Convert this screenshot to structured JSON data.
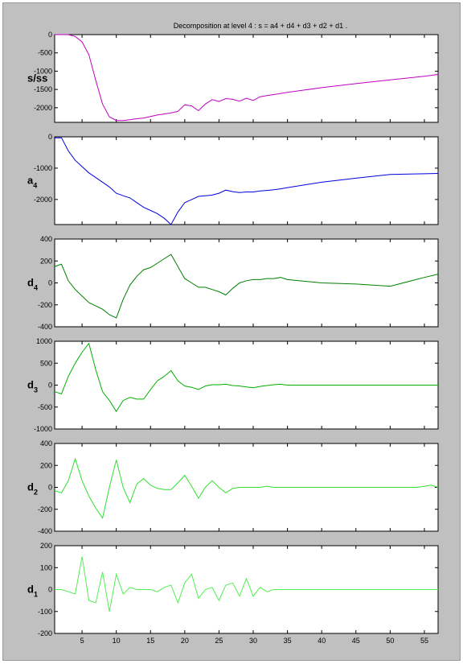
{
  "title": "Decomposition at level 4 : s = a4 + d4 + d3 + d2 + d1 .",
  "chart_data": [
    {
      "type": "line",
      "ylabel": "s/ss",
      "ylabel_sub": "",
      "color": "#c000c0",
      "xlim": [
        1,
        57
      ],
      "ylim": [
        -2400,
        0
      ],
      "yticks": [
        0,
        -500,
        -1000,
        -1500,
        -2000
      ],
      "xticks": [],
      "x": [
        1,
        2,
        3,
        4,
        5,
        6,
        7,
        8,
        9,
        10,
        11,
        12,
        13,
        14,
        15,
        16,
        17,
        18,
        19,
        20,
        21,
        22,
        23,
        24,
        25,
        26,
        27,
        28,
        29,
        30,
        31,
        32,
        33,
        34,
        35,
        40,
        45,
        50,
        55,
        57
      ],
      "values": [
        0,
        0,
        0,
        -50,
        -200,
        -550,
        -1250,
        -1900,
        -2250,
        -2350,
        -2350,
        -2330,
        -2300,
        -2280,
        -2240,
        -2200,
        -2170,
        -2140,
        -2100,
        -1920,
        -1950,
        -2080,
        -1900,
        -1780,
        -1830,
        -1750,
        -1770,
        -1820,
        -1740,
        -1800,
        -1700,
        -1670,
        -1640,
        -1610,
        -1580,
        -1450,
        -1340,
        -1240,
        -1140,
        -1090
      ]
    },
    {
      "type": "line",
      "ylabel": "a",
      "ylabel_sub": "4",
      "color": "#0000e0",
      "xlim": [
        1,
        57
      ],
      "ylim": [
        -2800,
        0
      ],
      "yticks": [
        0,
        -1000,
        -2000
      ],
      "xticks": [],
      "x": [
        1,
        2,
        3,
        4,
        5,
        6,
        7,
        8,
        9,
        10,
        11,
        12,
        13,
        14,
        15,
        16,
        17,
        18,
        19,
        20,
        21,
        22,
        23,
        24,
        25,
        26,
        27,
        28,
        29,
        30,
        31,
        32,
        33,
        34,
        35,
        40,
        45,
        50,
        55,
        57
      ],
      "values": [
        -30,
        -30,
        -450,
        -750,
        -950,
        -1150,
        -1300,
        -1450,
        -1600,
        -1800,
        -1880,
        -1950,
        -2100,
        -2250,
        -2350,
        -2450,
        -2600,
        -2800,
        -2400,
        -2100,
        -2000,
        -1900,
        -1880,
        -1860,
        -1800,
        -1700,
        -1750,
        -1780,
        -1760,
        -1760,
        -1730,
        -1710,
        -1690,
        -1660,
        -1620,
        -1450,
        -1320,
        -1200,
        -1180,
        -1170
      ]
    },
    {
      "type": "line",
      "ylabel": "d",
      "ylabel_sub": "4",
      "color": "#008000",
      "xlim": [
        1,
        57
      ],
      "ylim": [
        -400,
        400
      ],
      "yticks": [
        400,
        200,
        0,
        -200,
        -400
      ],
      "xticks": [],
      "x": [
        1,
        2,
        3,
        4,
        5,
        6,
        7,
        8,
        9,
        10,
        11,
        12,
        13,
        14,
        15,
        16,
        17,
        18,
        19,
        20,
        21,
        22,
        23,
        24,
        25,
        26,
        27,
        28,
        29,
        30,
        31,
        32,
        33,
        34,
        35,
        40,
        45,
        50,
        55,
        57
      ],
      "values": [
        150,
        170,
        20,
        -60,
        -120,
        -180,
        -210,
        -240,
        -290,
        -320,
        -150,
        -20,
        60,
        120,
        140,
        180,
        220,
        260,
        150,
        40,
        0,
        -40,
        -40,
        -60,
        -80,
        -110,
        -50,
        0,
        20,
        30,
        30,
        40,
        40,
        50,
        30,
        0,
        -10,
        -30,
        50,
        80
      ]
    },
    {
      "type": "line",
      "ylabel": "d",
      "ylabel_sub": "3",
      "color": "#00b000",
      "xlim": [
        1,
        57
      ],
      "ylim": [
        -1000,
        1000
      ],
      "yticks": [
        1000,
        500,
        0,
        -500,
        -1000
      ],
      "xticks": [],
      "x": [
        1,
        2,
        3,
        4,
        5,
        6,
        7,
        8,
        9,
        10,
        11,
        12,
        13,
        14,
        15,
        16,
        17,
        18,
        19,
        20,
        21,
        22,
        23,
        24,
        25,
        26,
        27,
        28,
        29,
        30,
        31,
        32,
        33,
        34,
        35,
        40,
        45,
        50,
        55,
        57
      ],
      "values": [
        -150,
        -200,
        200,
        500,
        750,
        950,
        350,
        -150,
        -350,
        -600,
        -350,
        -280,
        -320,
        -320,
        -100,
        100,
        200,
        330,
        100,
        -20,
        -50,
        -100,
        -20,
        10,
        10,
        20,
        -10,
        -20,
        -40,
        -60,
        -30,
        -10,
        10,
        20,
        0,
        0,
        0,
        0,
        0,
        0
      ]
    },
    {
      "type": "line",
      "ylabel": "d",
      "ylabel_sub": "2",
      "color": "#30e030",
      "xlim": [
        1,
        57
      ],
      "ylim": [
        -400,
        400
      ],
      "yticks": [
        400,
        200,
        0,
        -200,
        -400
      ],
      "xticks": [],
      "x": [
        1,
        2,
        3,
        4,
        5,
        6,
        7,
        8,
        9,
        10,
        11,
        12,
        13,
        14,
        15,
        16,
        17,
        18,
        19,
        20,
        21,
        22,
        23,
        24,
        25,
        26,
        27,
        28,
        29,
        30,
        31,
        32,
        33,
        34,
        35,
        40,
        45,
        50,
        54,
        56,
        57
      ],
      "values": [
        -30,
        -50,
        60,
        260,
        60,
        -80,
        -190,
        -280,
        0,
        250,
        0,
        -140,
        30,
        80,
        20,
        -10,
        -20,
        -20,
        40,
        110,
        10,
        -100,
        0,
        60,
        0,
        -50,
        -10,
        0,
        0,
        0,
        0,
        10,
        0,
        0,
        0,
        0,
        0,
        0,
        0,
        20,
        0
      ]
    },
    {
      "type": "line",
      "ylabel": "d",
      "ylabel_sub": "1",
      "color": "#50f050",
      "xlim": [
        1,
        57
      ],
      "ylim": [
        -200,
        200
      ],
      "yticks": [
        200,
        100,
        0,
        -100,
        -200
      ],
      "xticks": [
        5,
        10,
        15,
        20,
        25,
        30,
        35,
        40,
        45,
        50,
        55
      ],
      "x": [
        1,
        2,
        3,
        4,
        5,
        6,
        7,
        8,
        9,
        10,
        11,
        12,
        13,
        14,
        15,
        16,
        17,
        18,
        19,
        20,
        21,
        22,
        23,
        24,
        25,
        26,
        27,
        28,
        29,
        30,
        31,
        32,
        33,
        34,
        35,
        40,
        45,
        50,
        55,
        57
      ],
      "values": [
        0,
        0,
        -10,
        -20,
        150,
        -50,
        -60,
        80,
        -100,
        70,
        -20,
        10,
        0,
        0,
        0,
        -10,
        10,
        20,
        -60,
        30,
        70,
        -40,
        0,
        10,
        -50,
        20,
        30,
        -30,
        50,
        -30,
        10,
        -10,
        0,
        0,
        0,
        0,
        0,
        0,
        0,
        0
      ]
    }
  ]
}
